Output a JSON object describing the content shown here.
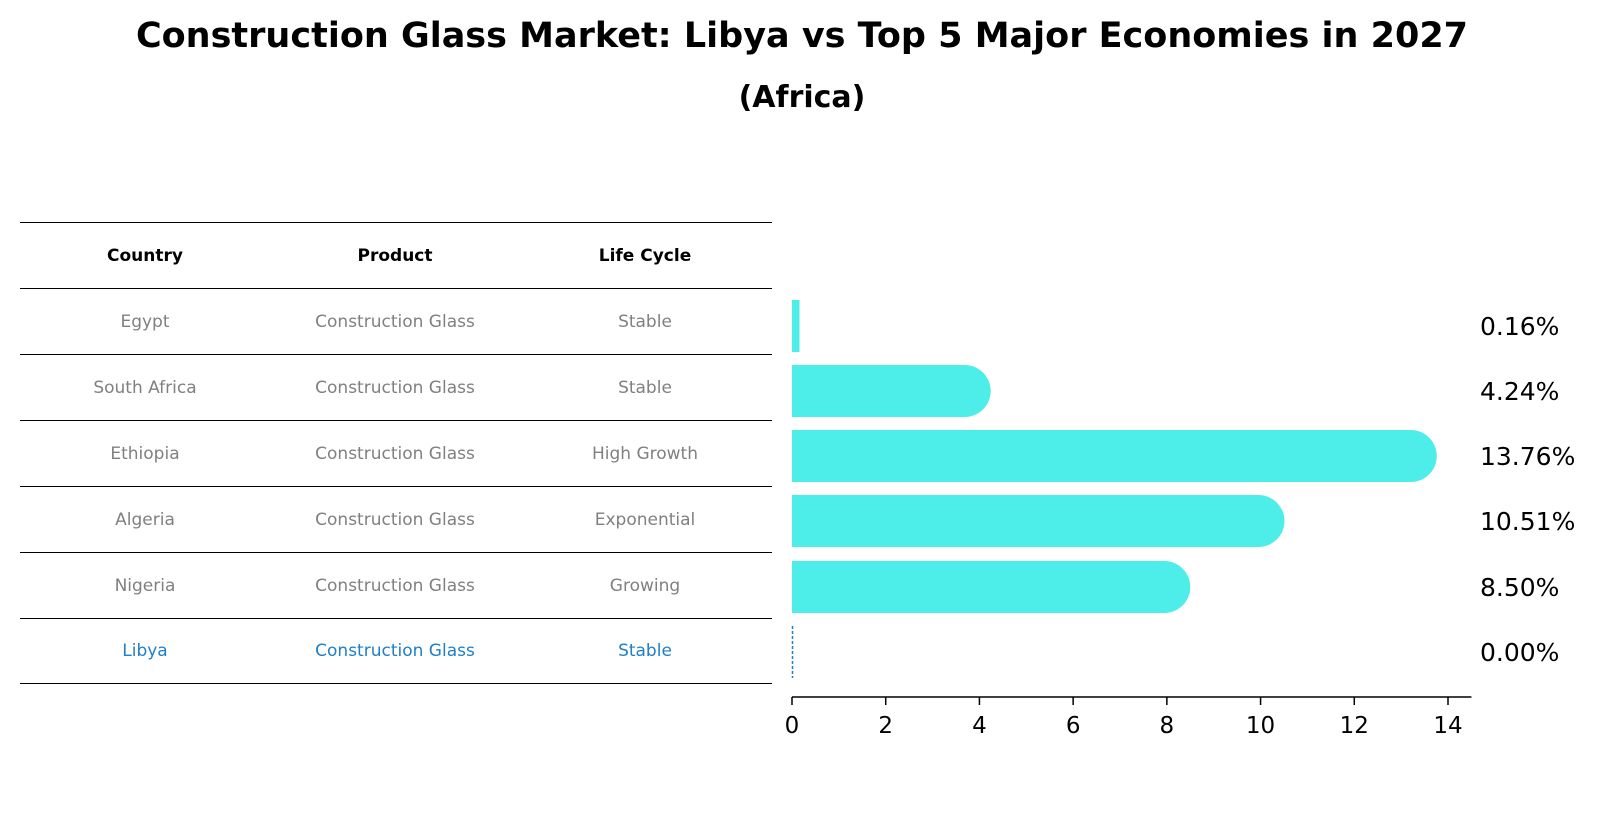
{
  "title": "Construction Glass Market: Libya vs Top 5 Major Economies in 2027",
  "subtitle": "(Africa)",
  "table": {
    "headers": [
      "Country",
      "Product",
      "Life Cycle"
    ],
    "rows": [
      [
        "Egypt",
        "Construction Glass",
        "Stable"
      ],
      [
        "South Africa",
        "Construction Glass",
        "Stable"
      ],
      [
        "Ethiopia",
        "Construction Glass",
        "High Growth"
      ],
      [
        "Algeria",
        "Construction Glass",
        "Exponential"
      ],
      [
        "Nigeria",
        "Construction Glass",
        "Growing"
      ],
      [
        "Libya",
        "Construction Glass",
        "Stable"
      ]
    ],
    "highlight_row": 5
  },
  "chart_data": {
    "type": "bar",
    "orientation": "horizontal",
    "categories": [
      "Egypt",
      "South Africa",
      "Ethiopia",
      "Algeria",
      "Nigeria",
      "Libya"
    ],
    "values": [
      0.16,
      4.24,
      13.76,
      10.51,
      8.5,
      0.0
    ],
    "value_labels": [
      "0.16%",
      "4.24%",
      "13.76%",
      "10.51%",
      "8.50%",
      "0.00%"
    ],
    "xlim": [
      0,
      14.5
    ],
    "xticks": [
      0,
      2,
      4,
      6,
      8,
      10,
      12,
      14
    ],
    "xlabel": "",
    "ylabel": "",
    "grid": false,
    "bar_color": "#4deeea",
    "highlight_color": "#1f7fc8"
  }
}
